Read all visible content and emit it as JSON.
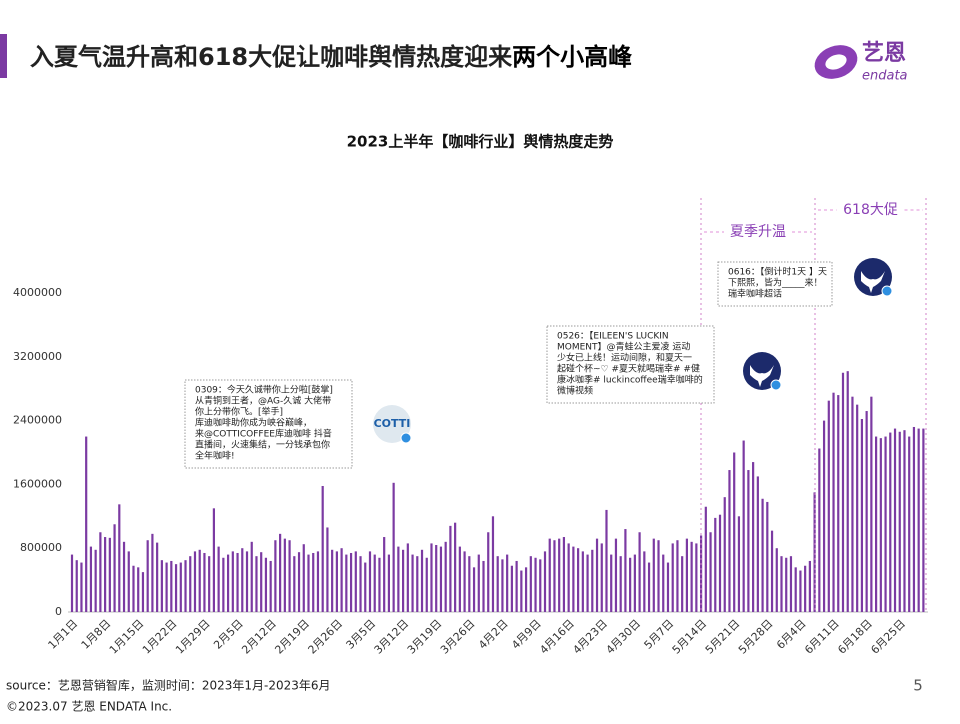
{
  "header": {
    "title": [
      "入夏气温升高和618大促让咖啡舆情热度迎来",
      "两个小高峰"
    ],
    "logo": [
      "艺恩",
      "endata"
    ]
  },
  "chart_data": {
    "type": "bar",
    "title": "2023上半年【咖啡行业】舆情热度走势",
    "color": "#7b3aa2",
    "ylim": [
      0,
      4000000
    ],
    "yticks": [
      0,
      800000,
      1600000,
      2400000,
      3200000,
      4000000
    ],
    "categories": [
      "1月1日",
      null,
      null,
      null,
      null,
      null,
      null,
      "1月8日",
      null,
      null,
      null,
      null,
      null,
      null,
      "1月15日",
      null,
      null,
      null,
      null,
      null,
      null,
      "1月22日",
      null,
      null,
      null,
      null,
      null,
      null,
      "1月29日",
      null,
      null,
      null,
      null,
      null,
      null,
      "2月5日",
      null,
      null,
      null,
      null,
      null,
      null,
      "2月12日",
      null,
      null,
      null,
      null,
      null,
      null,
      "2月19日",
      null,
      null,
      null,
      null,
      null,
      null,
      "2月26日",
      null,
      null,
      null,
      null,
      null,
      null,
      "3月5日",
      null,
      null,
      null,
      null,
      null,
      null,
      "3月12日",
      null,
      null,
      null,
      null,
      null,
      null,
      "3月19日",
      null,
      null,
      null,
      null,
      null,
      null,
      "3月26日",
      null,
      null,
      null,
      null,
      null,
      null,
      "4月2日",
      null,
      null,
      null,
      null,
      null,
      null,
      "4月9日",
      null,
      null,
      null,
      null,
      null,
      null,
      "4月16日",
      null,
      null,
      null,
      null,
      null,
      null,
      "4月23日",
      null,
      null,
      null,
      null,
      null,
      null,
      "4月30日",
      null,
      null,
      null,
      null,
      null,
      null,
      "5月7日",
      null,
      null,
      null,
      null,
      null,
      null,
      "5月14日",
      null,
      null,
      null,
      null,
      null,
      null,
      "5月21日",
      null,
      null,
      null,
      null,
      null,
      null,
      "5月28日",
      null,
      null,
      null,
      null,
      null,
      null,
      "6月4日",
      null,
      null,
      null,
      null,
      null,
      null,
      "6月11日",
      null,
      null,
      null,
      null,
      null,
      null,
      "6月18日",
      null,
      null,
      null,
      null,
      null,
      null,
      "6月25日",
      null,
      null,
      null,
      null,
      null
    ],
    "values": [
      720000,
      650000,
      620000,
      2200000,
      820000,
      780000,
      1000000,
      940000,
      930000,
      1100000,
      1350000,
      880000,
      760000,
      580000,
      560000,
      500000,
      900000,
      980000,
      870000,
      650000,
      620000,
      640000,
      600000,
      620000,
      650000,
      700000,
      760000,
      780000,
      740000,
      700000,
      1300000,
      820000,
      680000,
      720000,
      760000,
      740000,
      800000,
      760000,
      880000,
      700000,
      750000,
      680000,
      640000,
      900000,
      980000,
      920000,
      900000,
      700000,
      750000,
      850000,
      720000,
      740000,
      760000,
      1580000,
      1060000,
      780000,
      760000,
      800000,
      720000,
      740000,
      760000,
      700000,
      620000,
      760000,
      720000,
      680000,
      940000,
      720000,
      1620000,
      820000,
      780000,
      860000,
      720000,
      700000,
      780000,
      680000,
      860000,
      840000,
      820000,
      880000,
      1080000,
      1120000,
      820000,
      760000,
      700000,
      560000,
      720000,
      640000,
      1000000,
      1200000,
      700000,
      660000,
      720000,
      580000,
      640000,
      520000,
      560000,
      700000,
      680000,
      660000,
      760000,
      920000,
      900000,
      920000,
      940000,
      860000,
      820000,
      800000,
      760000,
      720000,
      780000,
      920000,
      860000,
      1280000,
      720000,
      920000,
      700000,
      1040000,
      680000,
      720000,
      1000000,
      760000,
      620000,
      920000,
      900000,
      720000,
      620000,
      860000,
      900000,
      700000,
      920000,
      880000,
      860000,
      960000,
      1320000,
      1000000,
      1180000,
      1220000,
      1440000,
      1780000,
      2000000,
      1200000,
      2150000,
      1780000,
      1880000,
      1700000,
      1420000,
      1380000,
      1020000,
      800000,
      700000,
      680000,
      700000,
      560000,
      520000,
      580000,
      640000,
      1500000,
      2050000,
      2400000,
      2650000,
      2750000,
      2720000,
      3000000,
      3020000,
      2700000,
      2600000,
      2420000,
      2520000,
      2700000,
      2200000,
      2180000,
      2200000,
      2250000,
      2300000,
      2260000,
      2280000,
      2200000,
      2320000,
      2300000,
      2300000
    ],
    "annotations": [
      "夏季升温",
      "618大促"
    ],
    "callouts": [
      {
        "lines": [
          "0309：今天久诚带你上分啦[鼓掌]",
          "从青铜到王者，@AG-久诚 大佬带",
          "你上分带你飞。[举手]",
          "库迪咖啡助你成为峡谷巅峰，",
          "来@COTTICOFFEE库迪咖啡 抖音",
          "直播间，火速集结，一分钱承包你",
          "全年咖啡!"
        ],
        "icon": "COTTI"
      },
      {
        "lines": [
          "0526：【EILEEN'S LUCKIN",
          "MOMENT】@青蛙公主爱凌  运动",
          "少女已上线！运动间隙，和夏天一",
          "起碰个杯~♡ #夏天就喝瑞幸# #健",
          "康冰咖季# luckincoffee瑞幸咖啡的",
          "微博视频"
        ]
      },
      {
        "lines": [
          "0616：【倒计时1天 】天",
          "下熙熙，皆为_____来！",
          "瑞幸咖啡超话"
        ]
      }
    ]
  },
  "footer": {
    "source": "source：艺恩营销智库，监测时间：2023年1月-2023年6月",
    "page": "5",
    "copyright": "©2023.07 艺恩 ENDATA Inc."
  }
}
